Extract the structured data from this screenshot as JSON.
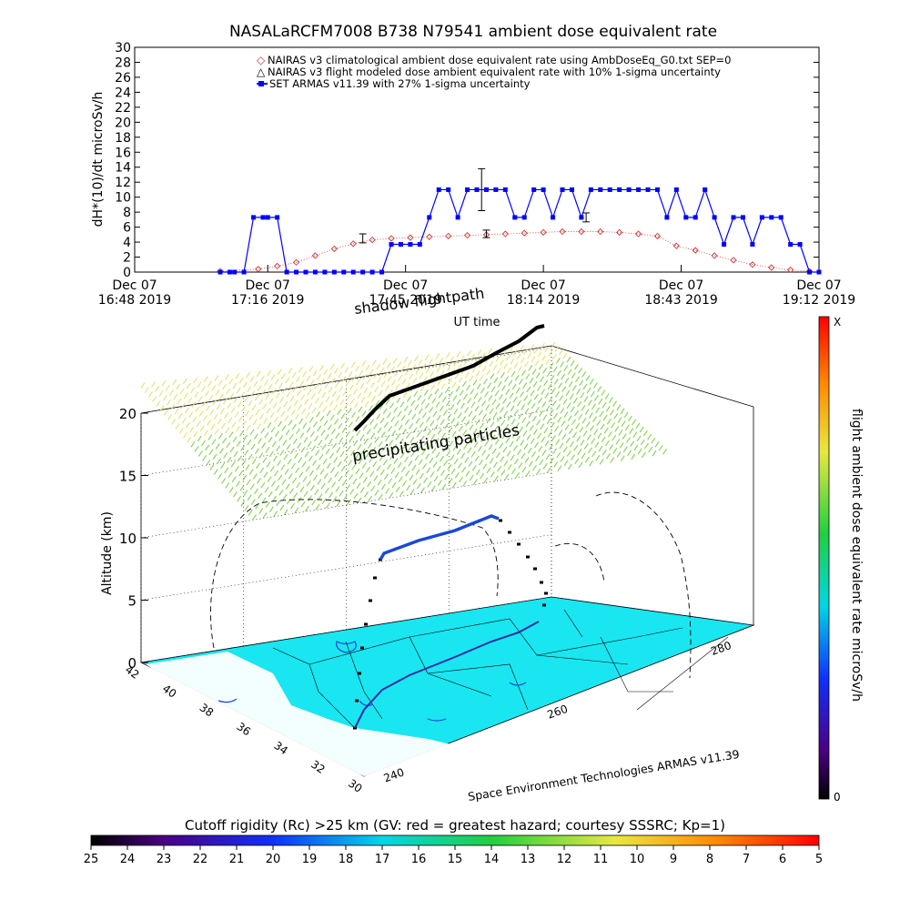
{
  "chart_data": [
    {
      "type": "line",
      "title": "NASALaRCFM7008  B738 N79541 ambient dose equivalent rate",
      "xlabel": "UT time",
      "ylabel": "dH*(10)/dt microSv/h",
      "ylim": [
        0,
        30
      ],
      "yticks": [
        0,
        2,
        4,
        6,
        8,
        10,
        12,
        14,
        16,
        18,
        20,
        22,
        24,
        26,
        28,
        30
      ],
      "xlim_minutes": [
        0,
        144
      ],
      "xticks": [
        {
          "min": 0,
          "line1": "Dec 07",
          "line2": "16:48 2019"
        },
        {
          "min": 28,
          "line1": "Dec 07",
          "line2": "17:16 2019"
        },
        {
          "min": 57,
          "line1": "Dec 07",
          "line2": "17:45 2019"
        },
        {
          "min": 86,
          "line1": "Dec 07",
          "line2": "18:14 2019"
        },
        {
          "min": 115,
          "line1": "Dec 07",
          "line2": "18:43 2019"
        },
        {
          "min": 144,
          "line1": "Dec 07",
          "line2": "19:12 2019"
        }
      ],
      "legend": {
        "placement": "top-right",
        "entries": [
          "NAIRAS v3 climatological ambient dose equivalent rate using AmbDoseEq_G0.txt SEP=0",
          "NAIRAS v3 flight modeled dose ambient equivalent rate with 10% 1-sigma uncertainty",
          "SET ARMAS v11.39 with 27% 1-sigma uncertainty"
        ]
      },
      "series": [
        {
          "name": "NAIRAS v3 climatological ambient dose equivalent rate using AmbDoseEq_G0.txt SEP=0",
          "color": "#cc3333",
          "marker": "diamond",
          "x_min": [
            18,
            26,
            30,
            34,
            38,
            42,
            46,
            50,
            54,
            58,
            62,
            66,
            70,
            74,
            78,
            82,
            86,
            90,
            94,
            98,
            102,
            106,
            110,
            114,
            118,
            122,
            126,
            130,
            134,
            138,
            142
          ],
          "values": [
            0.1,
            0.4,
            0.8,
            1.3,
            2.2,
            3.1,
            3.8,
            4.3,
            4.5,
            4.6,
            4.7,
            4.8,
            4.9,
            5.0,
            5.1,
            5.2,
            5.3,
            5.4,
            5.4,
            5.4,
            5.3,
            5.1,
            4.8,
            3.5,
            2.9,
            2.2,
            1.6,
            1.0,
            0.6,
            0.3,
            0.1
          ]
        },
        {
          "name": "NAIRAS v3 flight modeled dose ambient equivalent rate with 10% 1-sigma uncertainty",
          "color": "#000000",
          "marker": "errorbar",
          "x_min": [
            49,
            86,
            112,
            144
          ],
          "values": [
            4.5,
            5.1,
            4.5,
            0.0
          ],
          "errors": [
            0.5,
            0.5,
            0.5,
            0.0
          ]
        },
        {
          "name": "SET ARMAS v11.39 with 27% 1-sigma uncertainty",
          "color": "#0000ff",
          "marker": "square",
          "x_min": [
            18,
            20,
            21,
            23,
            25,
            27,
            28,
            30,
            32,
            34,
            36,
            38,
            40,
            42,
            44,
            46,
            48,
            50,
            52,
            54,
            56,
            58,
            60,
            62,
            64,
            66,
            68,
            70,
            72,
            74,
            76,
            78,
            80,
            82,
            84,
            86,
            88,
            90,
            92,
            94,
            96,
            98,
            100,
            102,
            104,
            106,
            108,
            110,
            112,
            114,
            116,
            118,
            120,
            122,
            124,
            126,
            128,
            130,
            132,
            134,
            136,
            138,
            140,
            142,
            144
          ],
          "values": [
            0,
            0,
            0,
            0,
            7.3,
            7.3,
            7.3,
            7.3,
            0,
            0,
            0,
            0,
            0,
            0,
            0,
            0,
            0,
            0,
            0,
            3.7,
            3.7,
            3.7,
            3.7,
            7.3,
            11,
            11,
            7.3,
            11,
            11,
            11,
            11,
            11,
            7.3,
            7.3,
            11,
            11,
            7.3,
            11,
            11,
            7.3,
            11,
            11,
            11,
            11,
            11,
            11,
            11,
            11,
            7.3,
            11,
            7.3,
            7.3,
            11,
            7.3,
            3.7,
            7.3,
            7.3,
            3.7,
            7.3,
            7.3,
            7.3,
            3.7,
            3.7,
            0,
            0
          ]
        }
      ],
      "errorbar_samples": [
        {
          "min": 48,
          "value": 4.5,
          "err": 0.6
        },
        {
          "min": 73,
          "value": 11,
          "err": 2.8
        },
        {
          "min": 74,
          "value": 5.1,
          "err": 0.5
        },
        {
          "min": 95,
          "value": 7.3,
          "err": 0.6
        }
      ]
    },
    {
      "type": "scatter",
      "subtype": "3d-flight-track",
      "zlabel": "Altitude (km)",
      "zlim": [
        0,
        20
      ],
      "zticks": [
        0,
        5,
        10,
        15,
        20
      ],
      "lat_ticks": [
        42,
        40,
        38,
        36,
        34,
        32,
        30
      ],
      "lon_ticks": [
        240,
        250,
        260,
        270,
        280,
        290
      ],
      "lon_tick_labels_shown": [
        "240",
        "260",
        "280"
      ],
      "annotations": {
        "shadow": "shadow flightpath",
        "particles": "precipitating particles",
        "credit": "Space Environment Technologies ARMAS v11.39"
      },
      "colorbar_right": {
        "label": "flight ambient dose equivalent rate microSv/h",
        "top_label": "X",
        "bottom_label": "0"
      },
      "colorbar_bottom": {
        "title": "Cutoff rigidity (Rc) >25 km (GV: red = greatest hazard; courtesy SSSRC; Kp=1)",
        "ticks": [
          "25",
          "24",
          "23",
          "22",
          "21",
          "20",
          "19",
          "18",
          "17",
          "16",
          "15",
          "14",
          "13",
          "12",
          "11",
          "10",
          "9",
          "8",
          "7",
          "6",
          "5"
        ]
      }
    }
  ],
  "colors": {
    "map_fill": "#19e6f0",
    "particle_green": "#7fd24a",
    "particle_yellow": "#e6e06a",
    "track_black": "#000000",
    "track_blue": "#1a49d6"
  }
}
